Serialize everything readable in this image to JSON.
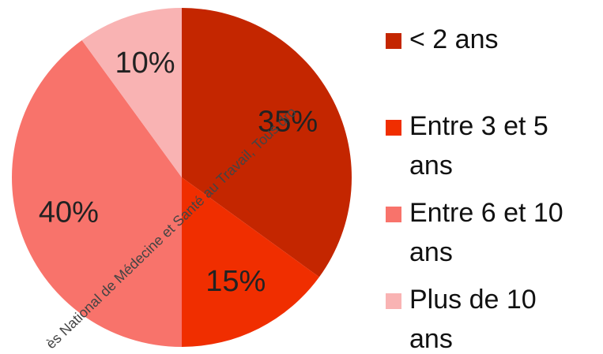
{
  "chart_data": {
    "type": "pie",
    "categories": [
      "< 2 ans",
      "Entre 3 et 5 ans",
      "Entre 6 et 10 ans",
      "Plus de 10 ans"
    ],
    "values": [
      35,
      15,
      40,
      10
    ],
    "value_labels": [
      "35%",
      "15%",
      "40%",
      "10%"
    ],
    "colors": [
      "#c42600",
      "#f02e00",
      "#f8736b",
      "#f9b3b3"
    ],
    "legend": "right",
    "watermark": "ès National de Médecine et Santé au Travail, Tous dro"
  }
}
